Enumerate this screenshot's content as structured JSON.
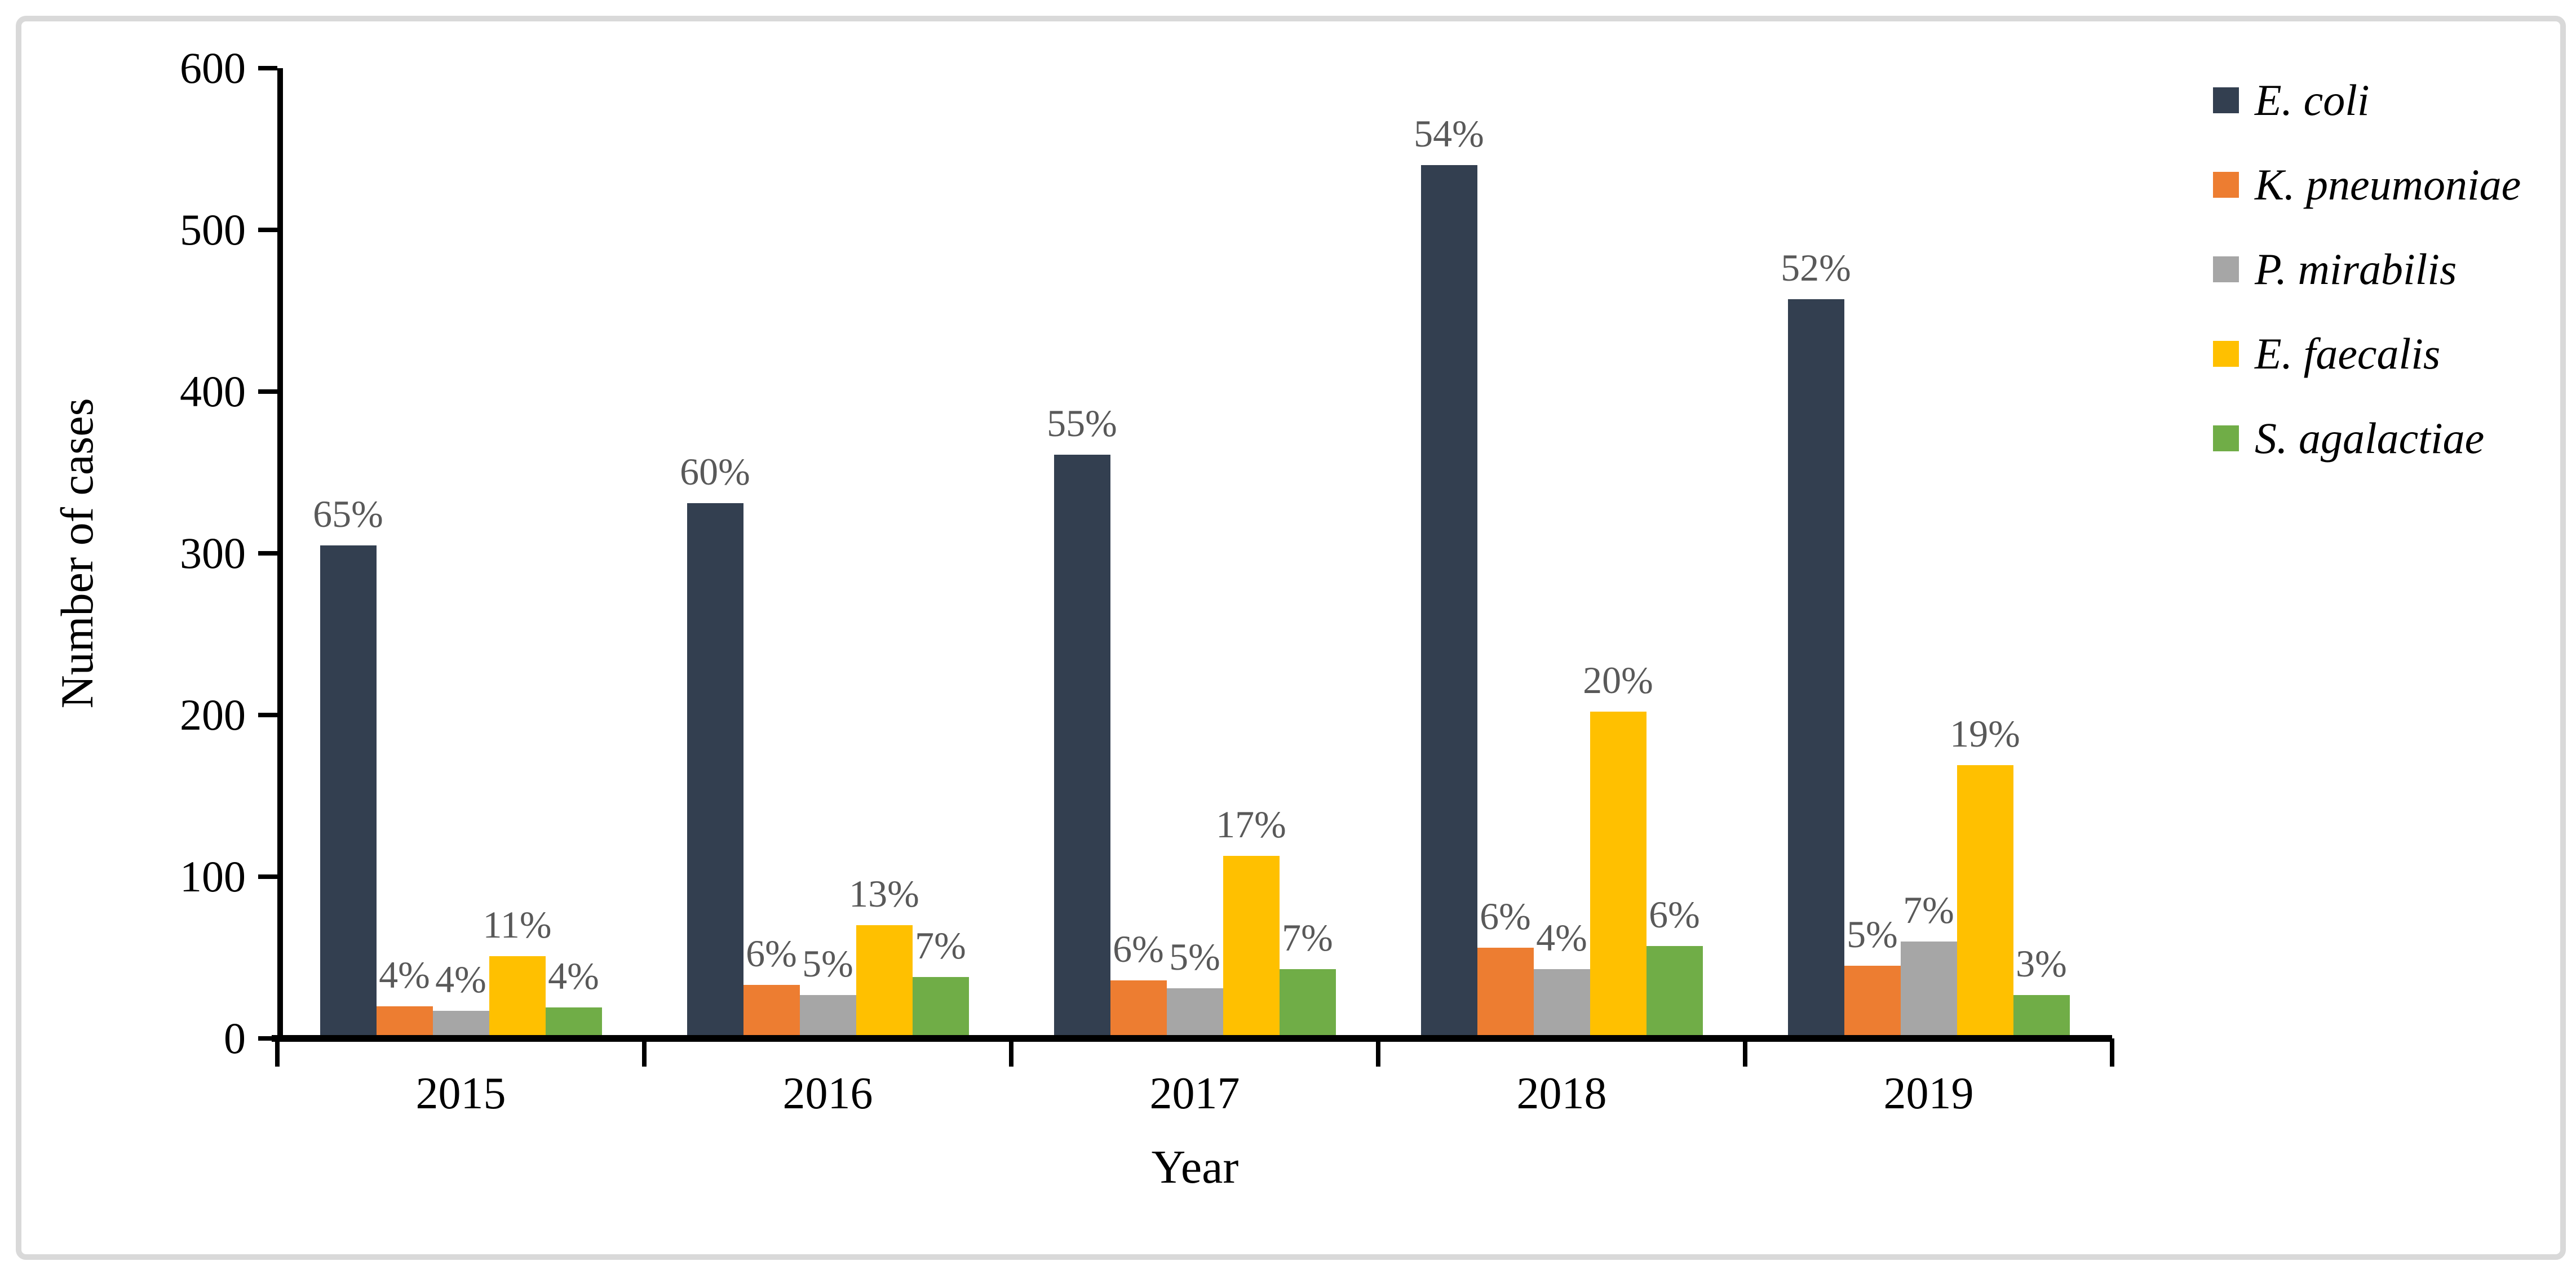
{
  "chart_data": {
    "type": "bar",
    "title": "",
    "xlabel": "Year",
    "ylabel": "Number of cases",
    "ylim": [
      0,
      600
    ],
    "ytick_interval": 100,
    "ytick_labels": [
      "0",
      "100",
      "200",
      "300",
      "400",
      "500",
      "600"
    ],
    "grid": false,
    "legend_position": "right",
    "categories": [
      "2015",
      "2016",
      "2017",
      "2018",
      "2019"
    ],
    "series": [
      {
        "name": "E. coli",
        "color": "#333F50",
        "values": [
          305,
          331,
          361,
          540,
          457
        ],
        "labels": [
          "65%",
          "60%",
          "55%",
          "54%",
          "52%"
        ]
      },
      {
        "name": "K. pneumoniae",
        "color": "#ED7D31",
        "values": [
          20,
          33,
          36,
          56,
          45
        ],
        "labels": [
          "4%",
          "6%",
          "6%",
          "6%",
          "5%"
        ]
      },
      {
        "name": "P. mirabilis",
        "color": "#A6A6A6",
        "values": [
          17,
          27,
          31,
          43,
          60
        ],
        "labels": [
          "4%",
          "5%",
          "5%",
          "4%",
          "7%"
        ]
      },
      {
        "name": "E. faecalis",
        "color": "#FFC000",
        "values": [
          51,
          70,
          113,
          202,
          169
        ],
        "labels": [
          "11%",
          "13%",
          "17%",
          "20%",
          "19%"
        ]
      },
      {
        "name": "S. agalactiae",
        "color": "#70AD47",
        "values": [
          19,
          38,
          43,
          57,
          27
        ],
        "labels": [
          "4%",
          "7%",
          "7%",
          "6%",
          "3%"
        ]
      }
    ],
    "data_label_color": "#595959",
    "axis_color": "#000000",
    "frame_border_color": "#D9D9D9"
  }
}
